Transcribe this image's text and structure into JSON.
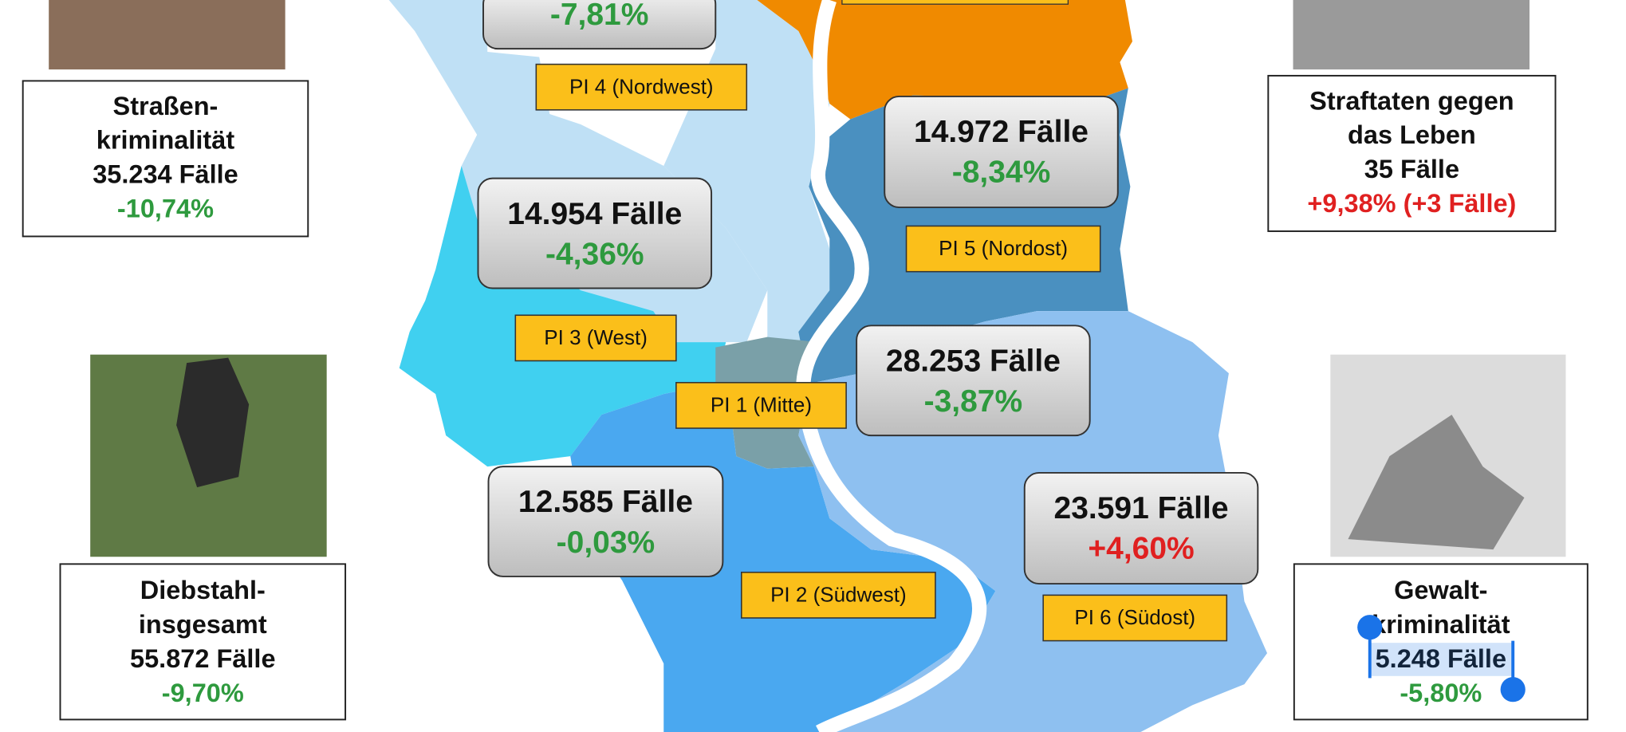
{
  "side_boxes": [
    {
      "lines": [
        "Straßen-",
        "kriminalität",
        "35.234 Fälle",
        "-10,74%"
      ],
      "change_color": "#2e9a3e"
    },
    {
      "lines": [
        "Straftaten gegen",
        "das Leben",
        "35 Fälle",
        "+9,38% (+3 Fälle)"
      ],
      "change_color": "#e02020"
    },
    {
      "lines": [
        "Diebstahl-",
        "insgesamt",
        "55.872 Fälle",
        "-9,70%"
      ],
      "change_color": "#2e9a3e"
    },
    {
      "lines": [
        "Gewalt-",
        "kriminalität",
        "5.248 Fälle",
        "-5,80%"
      ],
      "change_color": "#2e9a3e"
    }
  ],
  "districts": [
    {
      "label": "PI 4 (Nordwest)",
      "change": "-7,81%",
      "change_color": "#2e9a3e"
    },
    {
      "label": "PI 5 (Nordost)",
      "cases": "14.972 Fälle",
      "change": "-8,34%",
      "change_color": "#2e9a3e"
    },
    {
      "label": "PI 3 (West)",
      "cases": "14.954 Fälle",
      "change": "-4,36%",
      "change_color": "#2e9a3e"
    },
    {
      "label": "PI 1 (Mitte)",
      "cases": "28.253 Fälle",
      "change": "-3,87%",
      "change_color": "#2e9a3e"
    },
    {
      "label": "PI 2 (Südwest)",
      "cases": "12.585 Fälle",
      "change": "-0,03%",
      "change_color": "#2e9a3e"
    },
    {
      "label": "PI 6 (Südost)",
      "cases": "23.591 Fälle",
      "change": "+4,60%",
      "change_color": "#e02020"
    }
  ]
}
